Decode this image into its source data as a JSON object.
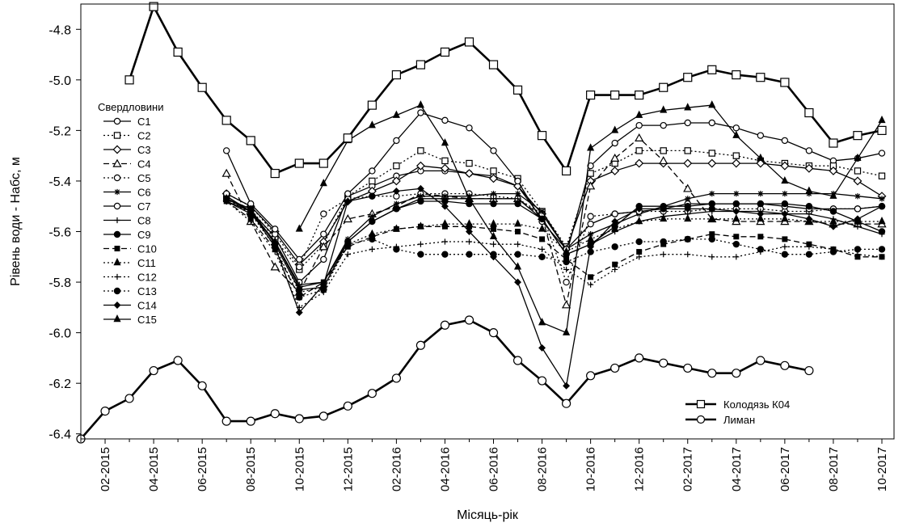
{
  "chart_data": {
    "type": "line",
    "xlabel": "Місяць-рік",
    "ylabel": "Рівень води - Набс, м",
    "x": [
      "01-2015",
      "02-2015",
      "03-2015",
      "04-2015",
      "05-2015",
      "06-2015",
      "07-2015",
      "08-2015",
      "09-2015",
      "10-2015",
      "11-2015",
      "12-2015",
      "01-2016",
      "02-2016",
      "03-2016",
      "04-2016",
      "05-2016",
      "06-2016",
      "07-2016",
      "08-2016",
      "09-2016",
      "10-2016",
      "11-2016",
      "12-2016",
      "01-2017",
      "02-2017",
      "03-2017",
      "04-2017",
      "05-2017",
      "06-2017",
      "07-2017",
      "08-2017",
      "09-2017",
      "10-2017"
    ],
    "x_tick_labels": [
      "02-2015",
      "04-2015",
      "06-2015",
      "08-2015",
      "10-2015",
      "12-2015",
      "02-2016",
      "04-2016",
      "06-2016",
      "08-2016",
      "10-2016",
      "12-2016",
      "02-2017",
      "04-2017",
      "06-2017",
      "08-2017",
      "10-2017"
    ],
    "ylim": [
      -6.42,
      -4.7
    ],
    "y_ticks": [
      -6.4,
      -6.2,
      -6.0,
      -5.8,
      -5.6,
      -5.4,
      -5.2,
      -5.0,
      -4.8
    ],
    "y_tick_labels": [
      "-6.4",
      "-6.2",
      "-6.0",
      "-5.8",
      "-5.6",
      "-5.4",
      "-5.2",
      "-5.0",
      "-4.8"
    ],
    "legend_top_title": "Свердловини",
    "legend_top_position": "top-left",
    "legend_bottom_position": "bottom-right",
    "series": [
      {
        "name": "C1",
        "group": "wells",
        "marker": "circle-open",
        "dash": "solid",
        "values": [
          null,
          null,
          null,
          null,
          null,
          null,
          -5.46,
          -5.52,
          -5.62,
          -5.8,
          -5.71,
          -5.46,
          -5.42,
          -5.38,
          -5.36,
          -5.36,
          -5.37,
          -5.38,
          -5.42,
          -5.55,
          -5.69,
          -5.34,
          -5.25,
          -5.18,
          -5.18,
          -5.17,
          -5.17,
          -5.19,
          -5.22,
          -5.24,
          -5.28,
          -5.32,
          -5.31,
          -5.29
        ]
      },
      {
        "name": "C2",
        "group": "wells",
        "marker": "square-open",
        "dash": "dotted",
        "values": [
          null,
          null,
          null,
          null,
          null,
          null,
          -5.47,
          -5.51,
          -5.63,
          -5.75,
          -5.65,
          -5.46,
          -5.4,
          -5.34,
          -5.28,
          -5.32,
          -5.33,
          -5.36,
          -5.39,
          -5.52,
          -5.66,
          -5.37,
          -5.33,
          -5.28,
          -5.28,
          -5.28,
          -5.29,
          -5.3,
          -5.32,
          -5.33,
          -5.34,
          -5.34,
          -5.36,
          -5.38
        ]
      },
      {
        "name": "C3",
        "group": "wells",
        "marker": "diamond-open",
        "dash": "solid",
        "values": [
          null,
          null,
          null,
          null,
          null,
          null,
          -5.45,
          -5.5,
          -5.6,
          -5.73,
          -5.64,
          -5.48,
          -5.44,
          -5.4,
          -5.34,
          -5.35,
          -5.37,
          -5.39,
          -5.42,
          -5.53,
          -5.67,
          -5.4,
          -5.36,
          -5.33,
          -5.33,
          -5.33,
          -5.33,
          -5.33,
          -5.33,
          -5.34,
          -5.35,
          -5.36,
          -5.4,
          -5.46
        ]
      },
      {
        "name": "C4",
        "group": "wells",
        "marker": "triangle-open",
        "dash": "dashed",
        "values": [
          null,
          null,
          null,
          null,
          null,
          null,
          -5.37,
          -5.56,
          -5.74,
          -5.84,
          -5.66,
          -5.55,
          -5.53,
          -5.5,
          -5.45,
          -5.46,
          -5.47,
          -5.47,
          -5.47,
          -5.54,
          -5.89,
          -5.42,
          -5.31,
          -5.23,
          -5.32,
          -5.43,
          -5.55,
          -5.56,
          -5.56,
          -5.56,
          -5.56,
          -5.57,
          -5.57,
          -5.57
        ]
      },
      {
        "name": "C5",
        "group": "wells",
        "marker": "circle-open",
        "dash": "dotted",
        "values": [
          null,
          null,
          null,
          null,
          null,
          null,
          -5.45,
          -5.5,
          -5.61,
          -5.74,
          -5.53,
          -5.47,
          -5.46,
          -5.46,
          -5.45,
          -5.45,
          -5.45,
          -5.46,
          -5.47,
          -5.53,
          -5.8,
          -5.54,
          -5.53,
          -5.52,
          -5.52,
          -5.52,
          -5.51,
          -5.51,
          -5.51,
          -5.52,
          -5.52,
          -5.51,
          -5.51,
          -5.5
        ]
      },
      {
        "name": "C6",
        "group": "wells",
        "marker": "star",
        "dash": "solid",
        "values": [
          null,
          null,
          null,
          null,
          null,
          null,
          -5.47,
          -5.52,
          -5.64,
          -5.82,
          -5.8,
          -5.63,
          -5.54,
          -5.49,
          -5.46,
          -5.46,
          -5.46,
          -5.45,
          -5.45,
          -5.52,
          -5.67,
          -5.61,
          -5.57,
          -5.53,
          -5.5,
          -5.47,
          -5.45,
          -5.45,
          -5.45,
          -5.45,
          -5.45,
          -5.45,
          -5.46,
          -5.47
        ]
      },
      {
        "name": "C7",
        "group": "wells",
        "marker": "circle-open",
        "dash": "solid",
        "values": [
          null,
          null,
          null,
          null,
          null,
          null,
          -5.28,
          -5.49,
          -5.59,
          -5.71,
          -5.61,
          -5.45,
          -5.36,
          -5.24,
          -5.13,
          -5.16,
          -5.19,
          -5.28,
          -5.4,
          -5.56,
          -5.67,
          -5.57,
          -5.53,
          -5.52,
          -5.51,
          -5.49,
          -5.49,
          -5.49,
          -5.49,
          -5.5,
          -5.51,
          -5.51,
          -5.51,
          -5.5
        ]
      },
      {
        "name": "C8",
        "group": "wells",
        "marker": "plus",
        "dash": "solid",
        "values": [
          null,
          null,
          null,
          null,
          null,
          null,
          -5.48,
          -5.53,
          -5.64,
          -5.81,
          -5.8,
          -5.64,
          -5.56,
          -5.51,
          -5.47,
          -5.47,
          -5.47,
          -5.47,
          -5.47,
          -5.55,
          -5.69,
          -5.65,
          -5.6,
          -5.56,
          -5.54,
          -5.53,
          -5.52,
          -5.52,
          -5.52,
          -5.53,
          -5.53,
          -5.55,
          -5.58,
          -5.61
        ]
      },
      {
        "name": "C9",
        "group": "wells",
        "marker": "circle-filled",
        "dash": "solid",
        "values": [
          null,
          null,
          null,
          null,
          null,
          null,
          -5.47,
          -5.51,
          -5.65,
          -5.83,
          -5.82,
          -5.64,
          -5.56,
          -5.51,
          -5.48,
          -5.48,
          -5.49,
          -5.49,
          -5.49,
          -5.55,
          -5.69,
          -5.65,
          -5.58,
          -5.5,
          -5.5,
          -5.5,
          -5.49,
          -5.49,
          -5.49,
          -5.49,
          -5.5,
          -5.52,
          -5.56,
          -5.6
        ]
      },
      {
        "name": "C10",
        "group": "wells",
        "marker": "square-filled",
        "dash": "dashed",
        "values": [
          null,
          null,
          null,
          null,
          null,
          null,
          -5.48,
          -5.55,
          -5.67,
          -5.86,
          -5.8,
          -5.66,
          -5.62,
          -5.59,
          -5.58,
          -5.58,
          -5.58,
          -5.59,
          -5.6,
          -5.63,
          -5.71,
          -5.78,
          -5.73,
          -5.68,
          -5.65,
          -5.63,
          -5.61,
          -5.62,
          -5.62,
          -5.63,
          -5.65,
          -5.67,
          -5.7,
          -5.7
        ]
      },
      {
        "name": "C11",
        "group": "wells",
        "marker": "triangle-filled",
        "dash": "dotted",
        "values": [
          null,
          null,
          null,
          null,
          null,
          null,
          -5.47,
          -5.53,
          -5.64,
          -5.84,
          -5.82,
          -5.65,
          -5.61,
          -5.59,
          -5.58,
          -5.57,
          -5.57,
          -5.57,
          -5.57,
          -5.59,
          -5.68,
          -5.63,
          -5.59,
          -5.56,
          -5.55,
          -5.55,
          -5.55,
          -5.55,
          -5.55,
          -5.55,
          -5.56,
          -5.56,
          -5.56,
          -5.56
        ]
      },
      {
        "name": "C12",
        "group": "wells",
        "marker": "plus",
        "dash": "dotted",
        "values": [
          null,
          null,
          null,
          null,
          null,
          null,
          -5.48,
          -5.56,
          -5.68,
          -5.9,
          -5.84,
          -5.69,
          -5.67,
          -5.66,
          -5.65,
          -5.64,
          -5.64,
          -5.65,
          -5.65,
          -5.67,
          -5.75,
          -5.81,
          -5.75,
          -5.7,
          -5.69,
          -5.69,
          -5.7,
          -5.7,
          -5.68,
          -5.66,
          -5.66,
          -5.67,
          -5.69,
          -5.7
        ]
      },
      {
        "name": "C13",
        "group": "wells",
        "marker": "circle-filled",
        "dash": "dotted",
        "values": [
          null,
          null,
          null,
          null,
          null,
          null,
          -5.47,
          -5.53,
          -5.66,
          -5.86,
          -5.83,
          -5.65,
          -5.63,
          -5.67,
          -5.69,
          -5.69,
          -5.69,
          -5.69,
          -5.69,
          -5.7,
          -5.72,
          -5.68,
          -5.66,
          -5.64,
          -5.64,
          -5.63,
          -5.63,
          -5.65,
          -5.67,
          -5.69,
          -5.69,
          -5.68,
          -5.67,
          -5.67
        ]
      },
      {
        "name": "C14",
        "group": "wells",
        "marker": "diamond-filled",
        "dash": "solid",
        "values": [
          null,
          null,
          null,
          null,
          null,
          null,
          -5.48,
          -5.52,
          -5.66,
          -5.92,
          -5.81,
          -5.48,
          -5.46,
          -5.44,
          -5.43,
          -5.5,
          -5.6,
          -5.7,
          -5.8,
          -6.06,
          -6.21,
          -5.66,
          -5.56,
          -5.51,
          -5.51,
          -5.51,
          -5.51,
          -5.52,
          -5.53,
          -5.53,
          -5.55,
          -5.58,
          -5.55,
          -5.5
        ]
      },
      {
        "name": "C15",
        "group": "wells",
        "marker": "triangle-filled",
        "dash": "solid",
        "values": [
          null,
          null,
          null,
          null,
          null,
          null,
          null,
          null,
          null,
          -5.59,
          -5.41,
          -5.24,
          -5.18,
          -5.14,
          -5.1,
          -5.25,
          -5.47,
          -5.62,
          -5.74,
          -5.96,
          -6.0,
          -5.27,
          -5.2,
          -5.14,
          -5.12,
          -5.11,
          -5.1,
          -5.22,
          -5.31,
          -5.4,
          -5.44,
          -5.46,
          -5.31,
          -5.16
        ]
      },
      {
        "name": "Колодязь К04",
        "group": "bottom",
        "marker": "square-open",
        "dash": "solid",
        "thick": true,
        "values": [
          null,
          null,
          -5.0,
          -4.71,
          -4.89,
          -5.03,
          -5.16,
          -5.24,
          -5.37,
          -5.33,
          -5.33,
          -5.23,
          -5.1,
          -4.98,
          -4.94,
          -4.89,
          -4.85,
          -4.94,
          -5.04,
          -5.22,
          -5.36,
          -5.06,
          -5.06,
          -5.06,
          -5.03,
          -4.99,
          -4.96,
          -4.98,
          -4.99,
          -5.01,
          -5.13,
          -5.25,
          -5.22,
          -5.2
        ]
      },
      {
        "name": "Лиман",
        "group": "bottom",
        "marker": "circle-open",
        "dash": "solid",
        "thick": true,
        "values": [
          -6.42,
          -6.31,
          -6.26,
          -6.15,
          -6.11,
          -6.21,
          -6.35,
          -6.35,
          -6.32,
          -6.34,
          -6.33,
          -6.29,
          -6.24,
          -6.18,
          -6.05,
          -5.97,
          -5.95,
          -6.0,
          -6.11,
          -6.19,
          -6.28,
          -6.17,
          -6.14,
          -6.1,
          -6.12,
          -6.14,
          -6.16,
          -6.16,
          -6.11,
          -6.13,
          -6.15,
          null,
          null,
          null
        ]
      }
    ]
  }
}
